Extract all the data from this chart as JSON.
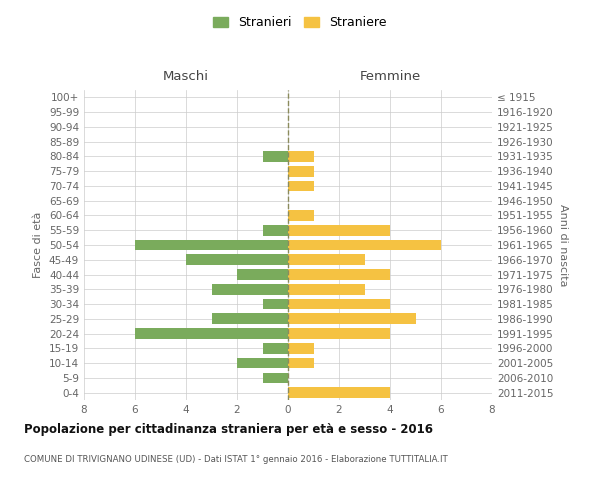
{
  "age_groups": [
    "100+",
    "95-99",
    "90-94",
    "85-89",
    "80-84",
    "75-79",
    "70-74",
    "65-69",
    "60-64",
    "55-59",
    "50-54",
    "45-49",
    "40-44",
    "35-39",
    "30-34",
    "25-29",
    "20-24",
    "15-19",
    "10-14",
    "5-9",
    "0-4"
  ],
  "birth_years": [
    "≤ 1915",
    "1916-1920",
    "1921-1925",
    "1926-1930",
    "1931-1935",
    "1936-1940",
    "1941-1945",
    "1946-1950",
    "1951-1955",
    "1956-1960",
    "1961-1965",
    "1966-1970",
    "1971-1975",
    "1976-1980",
    "1981-1985",
    "1986-1990",
    "1991-1995",
    "1996-2000",
    "2001-2005",
    "2006-2010",
    "2011-2015"
  ],
  "males": [
    0,
    0,
    0,
    0,
    1,
    0,
    0,
    0,
    0,
    1,
    6,
    4,
    2,
    3,
    1,
    3,
    6,
    1,
    2,
    1,
    0
  ],
  "females": [
    0,
    0,
    0,
    0,
    1,
    1,
    1,
    0,
    1,
    4,
    6,
    3,
    4,
    3,
    4,
    5,
    4,
    1,
    1,
    0,
    4
  ],
  "male_color": "#7aab5c",
  "female_color": "#f5c242",
  "center_line_color": "#8b8b5c",
  "grid_color": "#cccccc",
  "title": "Popolazione per cittadinanza straniera per età e sesso - 2016",
  "subtitle": "COMUNE DI TRIVIGNANO UDINESE (UD) - Dati ISTAT 1° gennaio 2016 - Elaborazione TUTTITALIA.IT",
  "xlabel_left": "Maschi",
  "xlabel_right": "Femmine",
  "ylabel_left": "Fasce di età",
  "ylabel_right": "Anni di nascita",
  "legend_male": "Stranieri",
  "legend_female": "Straniere",
  "xlim": 8,
  "background_color": "#ffffff",
  "bar_height": 0.72
}
